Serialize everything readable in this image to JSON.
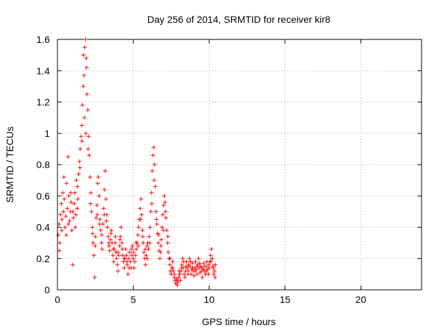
{
  "chart_data": {
    "type": "scatter",
    "title": "Day 256 of 2014, SRMTID for receiver kir8",
    "xlabel": "GPS time / hours",
    "ylabel": "SRMTID / TECUs",
    "xlim": [
      0,
      24
    ],
    "ylim": [
      0,
      1.6
    ],
    "xticks": [
      0,
      5,
      10,
      15,
      20
    ],
    "xtick_labels": [
      "0",
      "5",
      "10",
      "15",
      "20"
    ],
    "yticks": [
      0,
      0.2,
      0.4,
      0.6,
      0.8,
      1.0,
      1.2,
      1.4,
      1.6
    ],
    "ytick_labels": [
      "0",
      "0.2",
      "0.4",
      "0.6",
      "0.8",
      "1",
      "1.2",
      "1.4",
      "1.6"
    ],
    "grid": true,
    "marker": "+",
    "color": "#ff0000",
    "series": [
      {
        "name": "kir8",
        "points": [
          [
            0.05,
            0.35
          ],
          [
            0.1,
            0.42
          ],
          [
            0.15,
            0.3
          ],
          [
            0.2,
            0.48
          ],
          [
            0.25,
            0.55
          ],
          [
            0.3,
            0.45
          ],
          [
            0.35,
            0.62
          ],
          [
            0.4,
            0.5
          ],
          [
            0.45,
            0.58
          ],
          [
            0.5,
            0.4
          ],
          [
            0.55,
            0.47
          ],
          [
            0.6,
            0.68
          ],
          [
            0.65,
            0.52
          ],
          [
            0.7,
            0.85
          ],
          [
            0.75,
            0.6
          ],
          [
            0.8,
            0.44
          ],
          [
            0.85,
            0.5
          ],
          [
            0.9,
            0.56
          ],
          [
            0.95,
            0.38
          ],
          [
            1.0,
            0.16
          ],
          [
            1.05,
            0.46
          ],
          [
            1.1,
            0.55
          ],
          [
            1.15,
            0.62
          ],
          [
            1.2,
            0.48
          ],
          [
            1.25,
            0.7
          ],
          [
            1.3,
            0.52
          ],
          [
            1.35,
            0.58
          ],
          [
            1.4,
            0.74
          ],
          [
            1.45,
            0.82
          ],
          [
            1.5,
            0.9
          ],
          [
            1.55,
            0.98
          ],
          [
            1.6,
            1.05
          ],
          [
            1.65,
            1.18
          ],
          [
            1.7,
            1.3
          ],
          [
            1.72,
            1.5
          ],
          [
            1.75,
            1.37
          ],
          [
            1.8,
            1.55
          ],
          [
            1.85,
            1.6
          ],
          [
            1.9,
            1.48
          ],
          [
            1.92,
            1.42
          ],
          [
            1.95,
            1.25
          ],
          [
            2.0,
            1.15
          ],
          [
            2.05,
            0.98
          ],
          [
            2.1,
            0.86
          ],
          [
            2.15,
            0.72
          ],
          [
            2.2,
            0.62
          ],
          [
            2.25,
            0.5
          ],
          [
            2.3,
            0.4
          ],
          [
            2.35,
            0.3
          ],
          [
            2.4,
            0.22
          ],
          [
            2.45,
            0.08
          ],
          [
            2.5,
            0.34
          ],
          [
            2.55,
            0.46
          ],
          [
            2.6,
            0.54
          ],
          [
            2.65,
            0.68
          ],
          [
            2.7,
            0.72
          ],
          [
            2.75,
            0.6
          ],
          [
            2.8,
            0.45
          ],
          [
            2.85,
            0.38
          ],
          [
            2.9,
            0.3
          ],
          [
            2.95,
            0.26
          ],
          [
            3.0,
            0.42
          ],
          [
            3.05,
            0.52
          ],
          [
            3.1,
            0.64
          ],
          [
            3.15,
            0.76
          ],
          [
            3.2,
            0.58
          ],
          [
            3.25,
            0.48
          ],
          [
            3.3,
            0.4
          ],
          [
            3.35,
            0.34
          ],
          [
            3.4,
            0.28
          ],
          [
            3.45,
            0.25
          ],
          [
            3.5,
            0.32
          ],
          [
            3.55,
            0.38
          ],
          [
            3.6,
            0.3
          ],
          [
            3.65,
            0.22
          ],
          [
            3.7,
            0.18
          ],
          [
            3.75,
            0.26
          ],
          [
            3.8,
            0.3
          ],
          [
            3.85,
            0.24
          ],
          [
            3.9,
            0.2
          ],
          [
            3.95,
            0.16
          ],
          [
            4.0,
            0.12
          ],
          [
            4.05,
            0.22
          ],
          [
            4.1,
            0.28
          ],
          [
            4.15,
            0.34
          ],
          [
            4.2,
            0.4
          ],
          [
            4.25,
            0.3
          ],
          [
            4.3,
            0.22
          ],
          [
            4.35,
            0.18
          ],
          [
            4.4,
            0.14
          ],
          [
            4.45,
            0.2
          ],
          [
            4.5,
            0.26
          ],
          [
            4.55,
            0.22
          ],
          [
            4.6,
            0.16
          ],
          [
            4.65,
            0.1
          ],
          [
            4.7,
            0.2
          ],
          [
            4.75,
            0.24
          ],
          [
            4.8,
            0.18
          ],
          [
            4.85,
            0.14
          ],
          [
            4.9,
            0.22
          ],
          [
            4.95,
            0.28
          ],
          [
            5.0,
            0.2
          ],
          [
            5.05,
            0.14
          ],
          [
            5.1,
            0.18
          ],
          [
            5.15,
            0.22
          ],
          [
            5.2,
            0.26
          ],
          [
            5.25,
            0.3
          ],
          [
            5.3,
            0.35
          ],
          [
            5.35,
            0.4
          ],
          [
            5.4,
            0.45
          ],
          [
            5.45,
            0.52
          ],
          [
            5.5,
            0.58
          ],
          [
            5.55,
            0.48
          ],
          [
            5.6,
            0.38
          ],
          [
            5.65,
            0.3
          ],
          [
            5.7,
            0.24
          ],
          [
            5.75,
            0.2
          ],
          [
            5.8,
            0.16
          ],
          [
            5.85,
            0.22
          ],
          [
            5.9,
            0.28
          ],
          [
            5.95,
            0.3
          ],
          [
            6.0,
            0.26
          ],
          [
            6.05,
            0.34
          ],
          [
            6.1,
            0.4
          ],
          [
            6.15,
            0.5
          ],
          [
            6.2,
            0.62
          ],
          [
            6.25,
            0.76
          ],
          [
            6.3,
            0.86
          ],
          [
            6.35,
            0.91
          ],
          [
            6.4,
            0.8
          ],
          [
            6.45,
            0.66
          ],
          [
            6.5,
            0.5
          ],
          [
            6.55,
            0.42
          ],
          [
            6.6,
            0.36
          ],
          [
            6.65,
            0.3
          ],
          [
            6.7,
            0.25
          ],
          [
            6.75,
            0.2
          ],
          [
            6.8,
            0.24
          ],
          [
            6.85,
            0.32
          ],
          [
            6.9,
            0.4
          ],
          [
            6.95,
            0.48
          ],
          [
            7.0,
            0.54
          ],
          [
            7.05,
            0.6
          ],
          [
            7.1,
            0.56
          ],
          [
            7.15,
            0.46
          ],
          [
            7.2,
            0.38
          ],
          [
            7.25,
            0.3
          ],
          [
            7.3,
            0.24
          ],
          [
            7.35,
            0.2
          ],
          [
            7.4,
            0.16
          ],
          [
            7.45,
            0.12
          ],
          [
            7.5,
            0.1
          ],
          [
            7.55,
            0.14
          ],
          [
            7.6,
            0.18
          ],
          [
            7.65,
            0.12
          ],
          [
            7.7,
            0.08
          ],
          [
            7.75,
            0.06
          ],
          [
            7.8,
            0.04
          ],
          [
            7.85,
            0.07
          ],
          [
            7.9,
            0.03
          ],
          [
            7.95,
            0.05
          ],
          [
            8.0,
            0.08
          ],
          [
            8.05,
            0.1
          ],
          [
            8.1,
            0.06
          ],
          [
            8.15,
            0.12
          ],
          [
            8.2,
            0.16
          ],
          [
            8.25,
            0.2
          ],
          [
            8.3,
            0.14
          ],
          [
            8.35,
            0.1
          ],
          [
            8.4,
            0.08
          ],
          [
            8.45,
            0.12
          ],
          [
            8.5,
            0.18
          ],
          [
            8.55,
            0.14
          ],
          [
            8.6,
            0.1
          ],
          [
            8.65,
            0.16
          ],
          [
            8.7,
            0.2
          ],
          [
            8.75,
            0.15
          ],
          [
            8.8,
            0.1
          ],
          [
            8.85,
            0.13
          ],
          [
            8.9,
            0.17
          ],
          [
            8.95,
            0.12
          ],
          [
            9.0,
            0.09
          ],
          [
            9.05,
            0.14
          ],
          [
            9.1,
            0.18
          ],
          [
            9.15,
            0.13
          ],
          [
            9.2,
            0.1
          ],
          [
            9.25,
            0.16
          ],
          [
            9.3,
            0.2
          ],
          [
            9.35,
            0.14
          ],
          [
            9.4,
            0.11
          ],
          [
            9.45,
            0.15
          ],
          [
            9.5,
            0.12
          ],
          [
            9.55,
            0.08
          ],
          [
            9.6,
            0.13
          ],
          [
            9.65,
            0.17
          ],
          [
            9.7,
            0.12
          ],
          [
            9.75,
            0.1
          ],
          [
            9.8,
            0.15
          ],
          [
            9.85,
            0.18
          ],
          [
            9.9,
            0.13
          ],
          [
            9.95,
            0.1
          ],
          [
            10.0,
            0.14
          ],
          [
            10.05,
            0.18
          ],
          [
            10.1,
            0.22
          ],
          [
            10.15,
            0.26
          ],
          [
            10.2,
            0.2
          ],
          [
            10.25,
            0.15
          ],
          [
            10.3,
            0.1
          ],
          [
            10.35,
            0.12
          ],
          [
            10.4,
            0.08
          ],
          [
            0.12,
            0.25
          ],
          [
            0.28,
            0.38
          ],
          [
            0.42,
            0.72
          ],
          [
            0.58,
            0.35
          ],
          [
            0.72,
            0.42
          ],
          [
            0.88,
            0.62
          ],
          [
            1.02,
            0.5
          ],
          [
            1.18,
            0.4
          ],
          [
            1.32,
            0.66
          ],
          [
            1.48,
            0.78
          ],
          [
            1.62,
            0.95
          ],
          [
            1.78,
            1.1
          ],
          [
            1.88,
            1.0
          ],
          [
            2.02,
            0.9
          ],
          [
            2.18,
            0.55
          ],
          [
            2.32,
            0.36
          ],
          [
            2.48,
            0.28
          ],
          [
            2.62,
            0.48
          ],
          [
            2.78,
            0.42
          ],
          [
            2.92,
            0.35
          ],
          [
            3.08,
            0.48
          ],
          [
            3.22,
            0.44
          ],
          [
            3.38,
            0.3
          ],
          [
            3.52,
            0.36
          ],
          [
            3.68,
            0.26
          ],
          [
            3.82,
            0.34
          ],
          [
            3.98,
            0.24
          ],
          [
            4.12,
            0.32
          ],
          [
            4.28,
            0.26
          ],
          [
            4.42,
            0.2
          ],
          [
            4.58,
            0.18
          ],
          [
            4.72,
            0.14
          ],
          [
            4.88,
            0.26
          ],
          [
            5.02,
            0.24
          ],
          [
            5.18,
            0.3
          ],
          [
            5.32,
            0.28
          ],
          [
            5.48,
            0.45
          ],
          [
            5.62,
            0.34
          ],
          [
            5.78,
            0.26
          ],
          [
            5.92,
            0.2
          ],
          [
            6.08,
            0.3
          ],
          [
            6.22,
            0.55
          ],
          [
            6.38,
            0.7
          ],
          [
            6.52,
            0.45
          ],
          [
            6.68,
            0.35
          ],
          [
            6.82,
            0.28
          ],
          [
            6.98,
            0.38
          ],
          [
            7.12,
            0.5
          ],
          [
            7.28,
            0.34
          ],
          [
            7.42,
            0.2
          ],
          [
            7.58,
            0.14
          ],
          [
            7.72,
            0.1
          ],
          [
            7.88,
            0.06
          ],
          [
            8.02,
            0.12
          ],
          [
            8.18,
            0.14
          ],
          [
            8.32,
            0.18
          ],
          [
            8.48,
            0.15
          ],
          [
            8.62,
            0.12
          ],
          [
            8.78,
            0.18
          ],
          [
            8.92,
            0.14
          ],
          [
            9.08,
            0.12
          ],
          [
            9.22,
            0.15
          ],
          [
            9.38,
            0.17
          ],
          [
            9.52,
            0.14
          ],
          [
            9.68,
            0.15
          ],
          [
            9.82,
            0.12
          ],
          [
            9.98,
            0.16
          ],
          [
            10.12,
            0.18
          ],
          [
            10.28,
            0.14
          ],
          [
            10.42,
            0.16
          ]
        ]
      }
    ]
  }
}
